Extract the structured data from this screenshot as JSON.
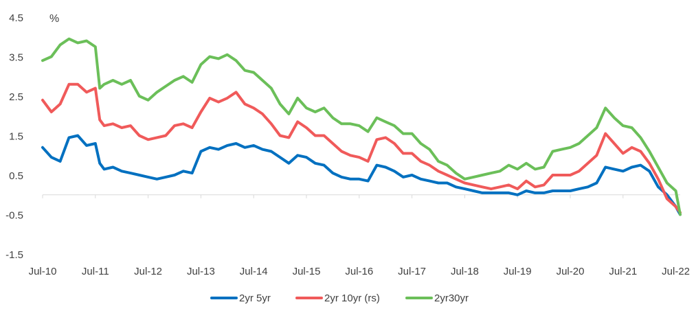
{
  "chart_data": {
    "type": "line",
    "title": "",
    "ylabel": "%",
    "xlabel": "",
    "ylim": [
      -1.5,
      4.5
    ],
    "yticks": [
      -1.5,
      -0.5,
      0.5,
      1.5,
      2.5,
      3.5,
      4.5
    ],
    "ytick_labels": [
      "-1.5",
      "-0.5",
      "0.5",
      "1.5",
      "2.5",
      "3.5",
      "4.5"
    ],
    "xlim": [
      "2010-07",
      "2022-08"
    ],
    "xticks": [
      "2010-07",
      "2011-07",
      "2012-07",
      "2013-07",
      "2014-07",
      "2015-07",
      "2016-07",
      "2017-07",
      "2018-07",
      "2019-07",
      "2020-07",
      "2021-07",
      "2022-07"
    ],
    "xtick_labels": [
      "Jul-10",
      "Jul-11",
      "Jul-12",
      "Jul-13",
      "Jul-14",
      "Jul-15",
      "Jul-16",
      "Jul-17",
      "Jul-18",
      "Jul-19",
      "Jul-20",
      "Jul-21",
      "Jul-22"
    ],
    "grid": false,
    "legend_position": "bottom",
    "series": [
      {
        "name": "2yr 5yr",
        "color": "#0070C0",
        "x": [
          "2010-07",
          "2010-09",
          "2010-11",
          "2011-01",
          "2011-03",
          "2011-05",
          "2011-07",
          "2011-08",
          "2011-09",
          "2011-11",
          "2012-01",
          "2012-03",
          "2012-05",
          "2012-07",
          "2012-09",
          "2012-11",
          "2013-01",
          "2013-03",
          "2013-05",
          "2013-07",
          "2013-09",
          "2013-11",
          "2014-01",
          "2014-03",
          "2014-05",
          "2014-07",
          "2014-09",
          "2014-11",
          "2015-01",
          "2015-03",
          "2015-05",
          "2015-07",
          "2015-09",
          "2015-11",
          "2016-01",
          "2016-03",
          "2016-05",
          "2016-07",
          "2016-09",
          "2016-11",
          "2017-01",
          "2017-03",
          "2017-05",
          "2017-07",
          "2017-09",
          "2017-11",
          "2018-01",
          "2018-03",
          "2018-05",
          "2018-07",
          "2018-09",
          "2018-11",
          "2019-01",
          "2019-03",
          "2019-05",
          "2019-07",
          "2019-09",
          "2019-11",
          "2020-01",
          "2020-03",
          "2020-05",
          "2020-07",
          "2020-09",
          "2020-11",
          "2021-01",
          "2021-03",
          "2021-05",
          "2021-07",
          "2021-09",
          "2021-11",
          "2022-01",
          "2022-03",
          "2022-05",
          "2022-07",
          "2022-08"
        ],
        "values": [
          1.2,
          0.95,
          0.85,
          1.45,
          1.5,
          1.25,
          1.3,
          0.8,
          0.65,
          0.7,
          0.6,
          0.55,
          0.5,
          0.45,
          0.4,
          0.45,
          0.5,
          0.6,
          0.55,
          1.1,
          1.2,
          1.15,
          1.25,
          1.3,
          1.2,
          1.25,
          1.15,
          1.1,
          0.95,
          0.8,
          1.0,
          0.95,
          0.8,
          0.75,
          0.55,
          0.45,
          0.4,
          0.4,
          0.35,
          0.75,
          0.7,
          0.6,
          0.45,
          0.5,
          0.4,
          0.35,
          0.3,
          0.3,
          0.2,
          0.15,
          0.1,
          0.05,
          0.05,
          0.05,
          0.05,
          0.0,
          0.1,
          0.05,
          0.05,
          0.1,
          0.1,
          0.1,
          0.15,
          0.2,
          0.3,
          0.7,
          0.65,
          0.6,
          0.7,
          0.75,
          0.6,
          0.2,
          0.0,
          -0.3,
          -0.5
        ]
      },
      {
        "name": "2yr 10yr (rs)",
        "color": "#F05A5A",
        "x": [
          "2010-07",
          "2010-09",
          "2010-11",
          "2011-01",
          "2011-03",
          "2011-05",
          "2011-07",
          "2011-08",
          "2011-09",
          "2011-11",
          "2012-01",
          "2012-03",
          "2012-05",
          "2012-07",
          "2012-09",
          "2012-11",
          "2013-01",
          "2013-03",
          "2013-05",
          "2013-07",
          "2013-09",
          "2013-11",
          "2014-01",
          "2014-03",
          "2014-05",
          "2014-07",
          "2014-09",
          "2014-11",
          "2015-01",
          "2015-03",
          "2015-05",
          "2015-07",
          "2015-09",
          "2015-11",
          "2016-01",
          "2016-03",
          "2016-05",
          "2016-07",
          "2016-09",
          "2016-11",
          "2017-01",
          "2017-03",
          "2017-05",
          "2017-07",
          "2017-09",
          "2017-11",
          "2018-01",
          "2018-03",
          "2018-05",
          "2018-07",
          "2018-09",
          "2018-11",
          "2019-01",
          "2019-03",
          "2019-05",
          "2019-07",
          "2019-09",
          "2019-11",
          "2020-01",
          "2020-03",
          "2020-05",
          "2020-07",
          "2020-09",
          "2020-11",
          "2021-01",
          "2021-03",
          "2021-05",
          "2021-07",
          "2021-09",
          "2021-11",
          "2022-01",
          "2022-03",
          "2022-05",
          "2022-07",
          "2022-08"
        ],
        "values": [
          2.4,
          2.1,
          2.3,
          2.8,
          2.8,
          2.6,
          2.7,
          1.9,
          1.75,
          1.8,
          1.7,
          1.75,
          1.5,
          1.4,
          1.45,
          1.5,
          1.75,
          1.8,
          1.7,
          2.1,
          2.45,
          2.35,
          2.45,
          2.6,
          2.3,
          2.2,
          2.05,
          1.8,
          1.5,
          1.45,
          1.85,
          1.7,
          1.5,
          1.5,
          1.3,
          1.1,
          1.0,
          0.95,
          0.85,
          1.4,
          1.45,
          1.3,
          1.05,
          1.05,
          0.85,
          0.75,
          0.6,
          0.5,
          0.4,
          0.3,
          0.25,
          0.2,
          0.15,
          0.2,
          0.25,
          0.15,
          0.35,
          0.2,
          0.25,
          0.5,
          0.5,
          0.5,
          0.6,
          0.8,
          1.0,
          1.55,
          1.3,
          1.05,
          1.2,
          1.1,
          0.8,
          0.4,
          -0.1,
          -0.3,
          -0.45
        ]
      },
      {
        "name": "2yr30yr",
        "color": "#6BBF59",
        "x": [
          "2010-07",
          "2010-09",
          "2010-11",
          "2011-01",
          "2011-03",
          "2011-05",
          "2011-07",
          "2011-08",
          "2011-09",
          "2011-11",
          "2012-01",
          "2012-03",
          "2012-05",
          "2012-07",
          "2012-09",
          "2012-11",
          "2013-01",
          "2013-03",
          "2013-05",
          "2013-07",
          "2013-09",
          "2013-11",
          "2014-01",
          "2014-03",
          "2014-05",
          "2014-07",
          "2014-09",
          "2014-11",
          "2015-01",
          "2015-03",
          "2015-05",
          "2015-07",
          "2015-09",
          "2015-11",
          "2016-01",
          "2016-03",
          "2016-05",
          "2016-07",
          "2016-09",
          "2016-11",
          "2017-01",
          "2017-03",
          "2017-05",
          "2017-07",
          "2017-09",
          "2017-11",
          "2018-01",
          "2018-03",
          "2018-05",
          "2018-07",
          "2018-09",
          "2018-11",
          "2019-01",
          "2019-03",
          "2019-05",
          "2019-07",
          "2019-09",
          "2019-11",
          "2020-01",
          "2020-03",
          "2020-05",
          "2020-07",
          "2020-09",
          "2020-11",
          "2021-01",
          "2021-03",
          "2021-05",
          "2021-07",
          "2021-09",
          "2021-11",
          "2022-01",
          "2022-03",
          "2022-05",
          "2022-07",
          "2022-08"
        ],
        "values": [
          3.4,
          3.5,
          3.8,
          3.95,
          3.85,
          3.9,
          3.75,
          2.7,
          2.8,
          2.9,
          2.8,
          2.9,
          2.5,
          2.4,
          2.6,
          2.75,
          2.9,
          3.0,
          2.85,
          3.3,
          3.5,
          3.45,
          3.55,
          3.4,
          3.15,
          3.1,
          2.9,
          2.7,
          2.3,
          2.05,
          2.45,
          2.2,
          2.1,
          2.2,
          1.95,
          1.8,
          1.8,
          1.75,
          1.6,
          1.95,
          1.85,
          1.75,
          1.55,
          1.55,
          1.3,
          1.15,
          0.85,
          0.75,
          0.55,
          0.4,
          0.45,
          0.5,
          0.55,
          0.6,
          0.75,
          0.65,
          0.8,
          0.65,
          0.7,
          1.1,
          1.15,
          1.2,
          1.3,
          1.5,
          1.7,
          2.2,
          1.95,
          1.75,
          1.7,
          1.45,
          1.1,
          0.7,
          0.3,
          0.1,
          -0.5
        ]
      }
    ]
  }
}
